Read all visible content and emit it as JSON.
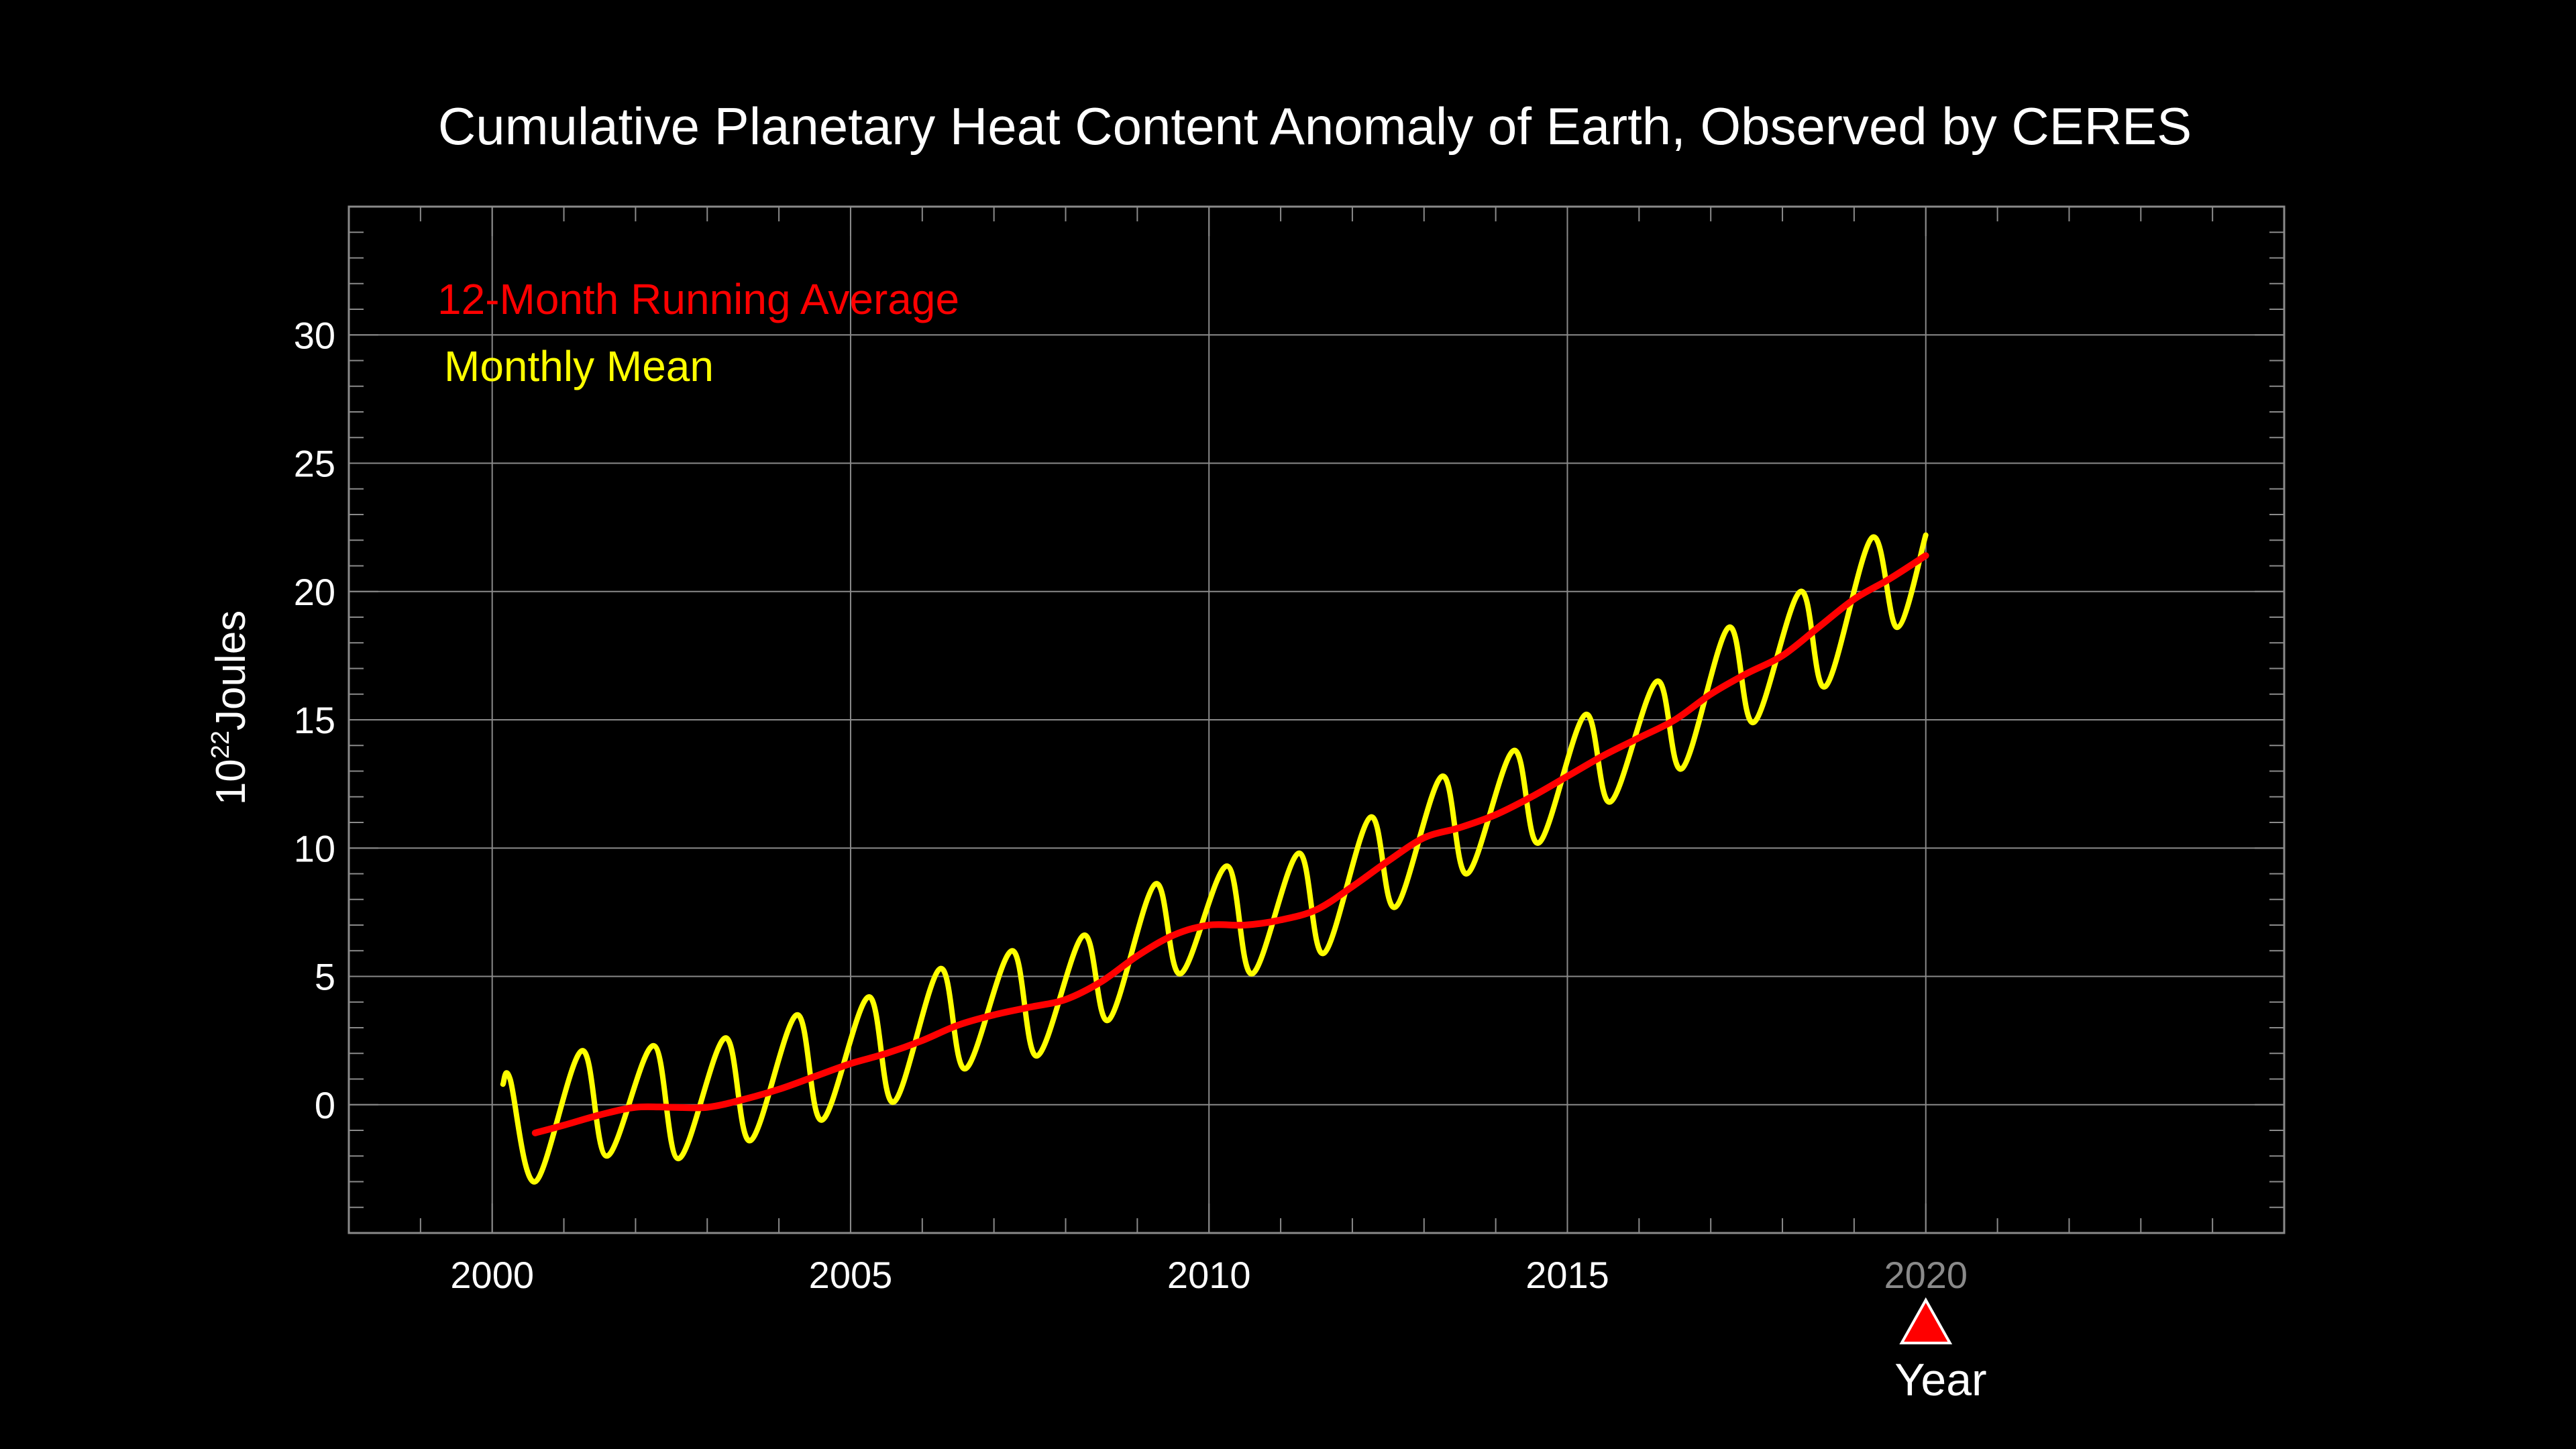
{
  "chart_data": {
    "type": "line",
    "title": "Cumulative Planetary Heat Content Anomaly of Earth, Observed by CERES",
    "ylabel_base": "10",
    "ylabel_exp": "22",
    "ylabel_unit": "Joules",
    "xlabel": "Year",
    "xlim": [
      1998,
      2025
    ],
    "ylim": [
      -5,
      35
    ],
    "x_ticks": [
      "2000",
      "2005",
      "2010",
      "2015",
      "2020"
    ],
    "y_ticks": [
      "0",
      "5",
      "10",
      "15",
      "20",
      "25",
      "30"
    ],
    "grid": true,
    "legend_position": "top-left",
    "current_year_marker": 2020,
    "colors": {
      "background": "#000000",
      "text": "#ffffff",
      "grid": "#8a8a8a",
      "running_average": "#ff0000",
      "monthly_mean": "#ffff00",
      "faded_tick": "#8a8a8a",
      "marker": "#ff0000"
    },
    "series": [
      {
        "name": "12-Month Running Average",
        "color": "#ff0000",
        "x": [
          2000.6,
          2001.0,
          2001.5,
          2002.0,
          2002.5,
          2003.0,
          2003.5,
          2004.0,
          2004.5,
          2005.0,
          2005.5,
          2006.0,
          2006.5,
          2007.0,
          2007.5,
          2008.0,
          2008.5,
          2009.0,
          2009.5,
          2010.0,
          2010.5,
          2011.0,
          2011.5,
          2012.0,
          2012.5,
          2013.0,
          2013.5,
          2014.0,
          2014.5,
          2015.0,
          2015.5,
          2016.0,
          2016.5,
          2017.0,
          2017.5,
          2018.0,
          2018.5,
          2019.0,
          2019.5,
          2020.0
        ],
        "values": [
          -1.1,
          -0.8,
          -0.4,
          -0.1,
          -0.1,
          -0.1,
          0.2,
          0.6,
          1.1,
          1.6,
          2.0,
          2.5,
          3.1,
          3.5,
          3.8,
          4.1,
          4.8,
          5.8,
          6.6,
          7.0,
          7.0,
          7.2,
          7.6,
          8.5,
          9.5,
          10.4,
          10.8,
          11.3,
          12.0,
          12.8,
          13.6,
          14.3,
          15.0,
          16.0,
          16.8,
          17.5,
          18.6,
          19.7,
          20.5,
          21.4
        ]
      },
      {
        "name": "Monthly Mean",
        "color": "#ffff00",
        "x": [
          2000.15,
          2000.25,
          2000.6,
          2001.25,
          2001.6,
          2002.25,
          2002.6,
          2003.25,
          2003.6,
          2004.25,
          2004.6,
          2005.25,
          2005.6,
          2006.25,
          2006.6,
          2007.25,
          2007.6,
          2008.25,
          2008.6,
          2009.25,
          2009.6,
          2010.25,
          2010.6,
          2011.25,
          2011.6,
          2012.25,
          2012.6,
          2013.25,
          2013.6,
          2014.25,
          2014.6,
          2015.25,
          2015.6,
          2016.25,
          2016.6,
          2017.25,
          2017.6,
          2018.25,
          2018.6,
          2019.25,
          2019.6,
          2020.0
        ],
        "values": [
          0.8,
          1.0,
          -3.0,
          2.1,
          -2.0,
          2.3,
          -2.1,
          2.6,
          -1.4,
          3.5,
          -0.6,
          4.2,
          0.1,
          5.3,
          1.4,
          6.0,
          1.9,
          6.6,
          3.3,
          8.6,
          5.1,
          9.3,
          5.1,
          9.8,
          5.9,
          11.2,
          7.7,
          12.8,
          9.0,
          13.8,
          10.2,
          15.2,
          11.8,
          16.5,
          13.1,
          18.6,
          14.9,
          20.0,
          16.3,
          22.1,
          18.6,
          22.2
        ]
      }
    ]
  }
}
